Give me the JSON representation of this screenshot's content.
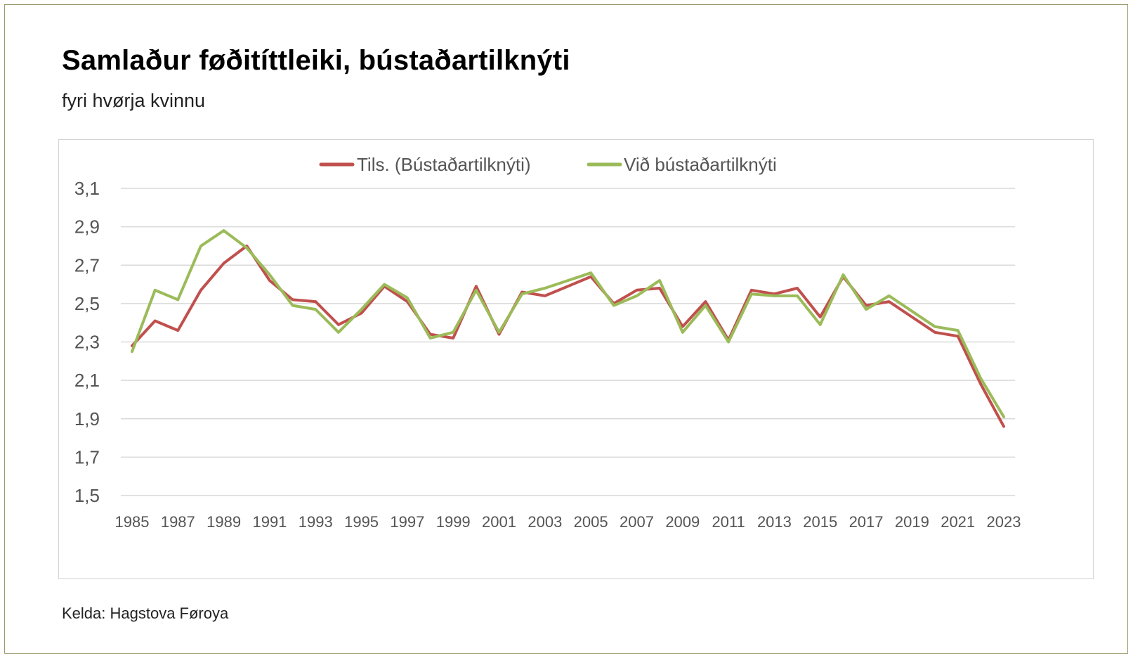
{
  "title": "Samlaður føðitíttleiki, bústaðartilknýti",
  "subtitle": "fyri hvørja kvinnu",
  "source": "Kelda: Hagstova Føroya",
  "colors": {
    "series_1": "#c0504d",
    "series_2": "#9bbb59",
    "grid": "#d9d9d9",
    "tick_text": "#555555"
  },
  "chart_data": {
    "type": "line",
    "x": [
      1985,
      1986,
      1987,
      1988,
      1989,
      1990,
      1991,
      1992,
      1993,
      1994,
      1995,
      1996,
      1997,
      1998,
      1999,
      2000,
      2001,
      2002,
      2003,
      2004,
      2005,
      2006,
      2007,
      2008,
      2009,
      2010,
      2011,
      2012,
      2013,
      2014,
      2015,
      2016,
      2017,
      2018,
      2019,
      2020,
      2021,
      2022,
      2023
    ],
    "x_tick_labels": [
      "1985",
      "1987",
      "1989",
      "1991",
      "1993",
      "1995",
      "1997",
      "1999",
      "2001",
      "2003",
      "2005",
      "2007",
      "2009",
      "2011",
      "2013",
      "2015",
      "2017",
      "2019",
      "2021",
      "2023"
    ],
    "y_tick_labels": [
      "3,1",
      "2,9",
      "2,7",
      "2,5",
      "2,3",
      "2,1",
      "1,9",
      "1,7",
      "1,5"
    ],
    "ylim": [
      1.5,
      3.1
    ],
    "y_step": 0.2,
    "grid": true,
    "legend_position": "top",
    "series": [
      {
        "name": "Tils. (Bústaðartilknýti)",
        "color": "#c0504d",
        "values": [
          2.28,
          2.41,
          2.36,
          2.57,
          2.71,
          2.8,
          2.62,
          2.52,
          2.51,
          2.39,
          2.45,
          2.59,
          2.51,
          2.34,
          2.32,
          2.59,
          2.34,
          2.56,
          2.54,
          2.59,
          2.64,
          2.5,
          2.57,
          2.58,
          2.38,
          2.51,
          2.31,
          2.57,
          2.55,
          2.58,
          2.43,
          2.64,
          2.49,
          2.51,
          2.43,
          2.35,
          2.33,
          2.08,
          1.86
        ]
      },
      {
        "name": "Við bústaðartilknýti",
        "color": "#9bbb59",
        "values": [
          2.25,
          2.57,
          2.52,
          2.8,
          2.88,
          2.79,
          2.65,
          2.49,
          2.47,
          2.35,
          2.47,
          2.6,
          2.53,
          2.32,
          2.35,
          2.57,
          2.35,
          2.55,
          2.58,
          2.62,
          2.66,
          2.49,
          2.54,
          2.62,
          2.35,
          2.49,
          2.3,
          2.55,
          2.54,
          2.54,
          2.39,
          2.65,
          2.47,
          2.54,
          2.46,
          2.38,
          2.36,
          2.11,
          1.91
        ]
      }
    ]
  }
}
